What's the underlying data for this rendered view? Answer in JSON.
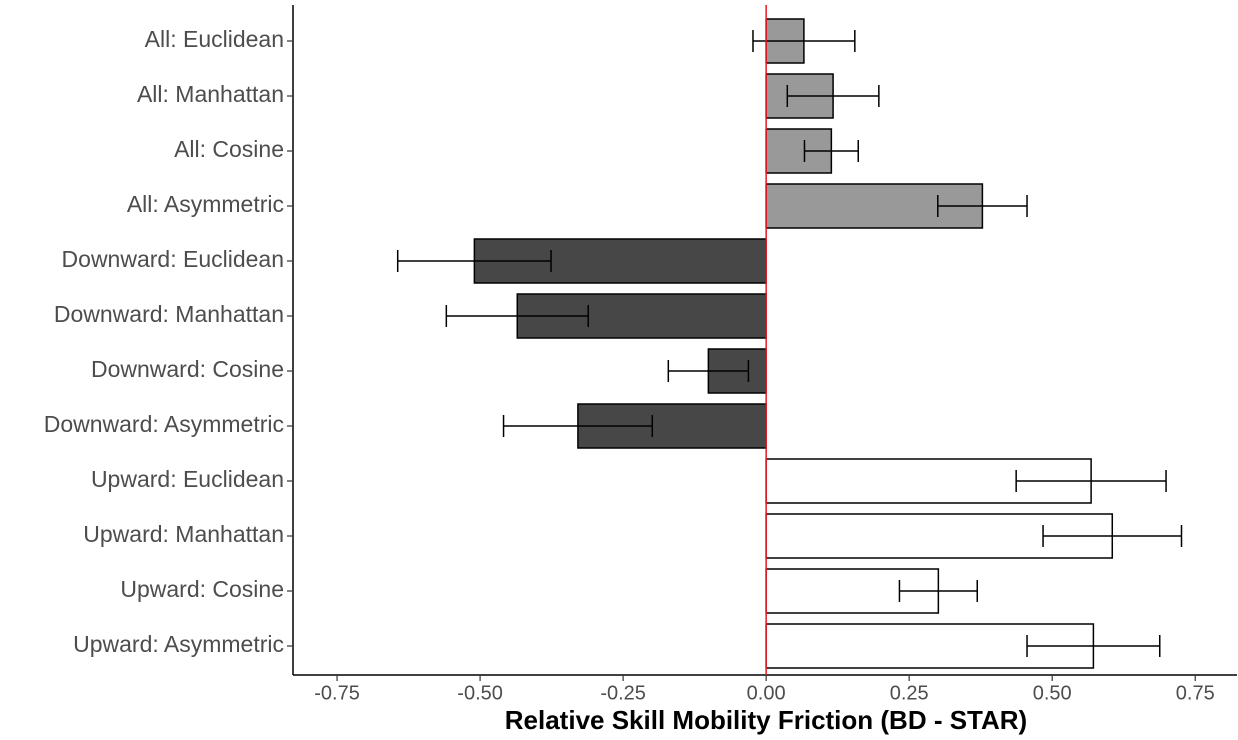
{
  "chart_data": {
    "type": "bar",
    "orientation": "horizontal",
    "x_label": "Relative Skill Mobility Friction (BD - STAR)",
    "categories": [
      "All: Euclidean",
      "All: Manhattan",
      "All: Cosine",
      "All: Asymmetric",
      "Downward: Euclidean",
      "Downward: Manhattan",
      "Downward: Cosine",
      "Downward: Asymmetric",
      "Upward: Euclidean",
      "Upward: Manhattan",
      "Upward: Cosine",
      "Upward: Asymmetric"
    ],
    "values": [
      0.066,
      0.117,
      0.114,
      0.378,
      -0.51,
      -0.435,
      -0.101,
      -0.329,
      0.568,
      0.605,
      0.301,
      0.572
    ],
    "errors": [
      0.089,
      0.08,
      0.047,
      0.078,
      0.134,
      0.124,
      0.07,
      0.13,
      0.131,
      0.121,
      0.068,
      0.116
    ],
    "colors": [
      "#999999",
      "#999999",
      "#999999",
      "#999999",
      "#474747",
      "#474747",
      "#474747",
      "#474747",
      "#ffffff",
      "#ffffff",
      "#ffffff",
      "#ffffff"
    ],
    "xlim": [
      -0.827,
      0.823
    ],
    "xticks": [
      -0.75,
      {
        "value": -0.5,
        "label": "-0.50"
      },
      -0.25,
      {
        "value": 0,
        "label": "0.00"
      },
      0.25,
      {
        "value": 0.5,
        "label": "0.50"
      },
      0.75
    ],
    "reference_line": {
      "value": 0,
      "color": "#e8191f"
    },
    "grid": false
  }
}
